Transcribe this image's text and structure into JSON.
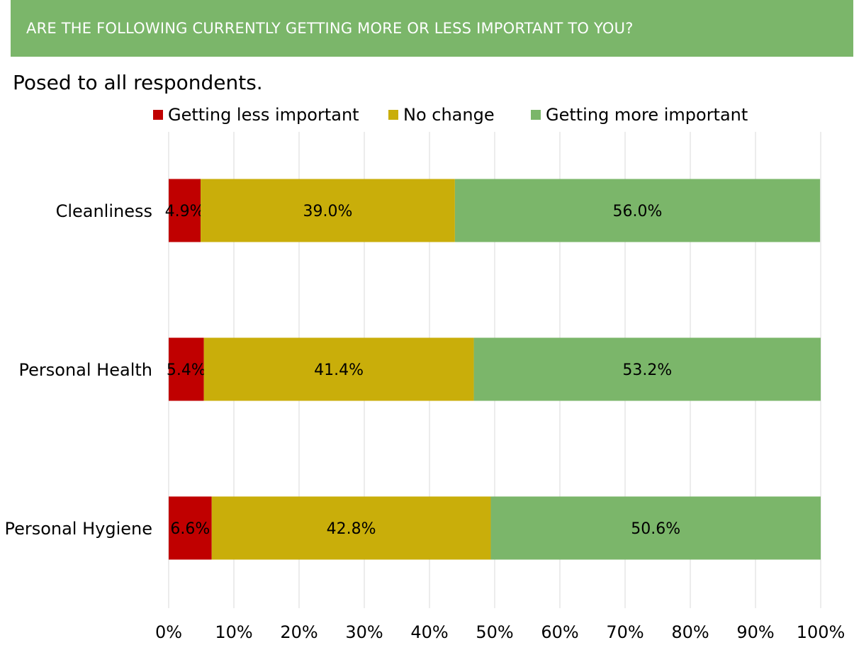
{
  "header": {
    "title": "ARE THE FOLLOWING CURRENTLY GETTING MORE OR LESS IMPORTANT TO YOU?"
  },
  "subtitle": "Posed to all respondents.",
  "colors": {
    "header_bg": "#7bb66a",
    "less": "#c00000",
    "no_change": "#c9ae0a",
    "more": "#7bb66a",
    "grid": "#d9d9d9"
  },
  "chart_data": {
    "type": "bar",
    "orientation": "horizontal",
    "stacked": true,
    "categories": [
      "Cleanliness",
      "Personal Health",
      "Personal Hygiene"
    ],
    "series": [
      {
        "name": "Getting less important",
        "values": [
          4.9,
          5.4,
          6.6
        ],
        "labels": [
          "4.9%",
          "5.4%",
          "6.6%"
        ]
      },
      {
        "name": "No change",
        "values": [
          39.0,
          41.4,
          42.8
        ],
        "labels": [
          "39.0%",
          "41.4%",
          "42.8%"
        ]
      },
      {
        "name": "Getting more important",
        "values": [
          56.0,
          53.2,
          50.6
        ],
        "labels": [
          "56.0%",
          "53.2%",
          "50.6%"
        ]
      }
    ],
    "xlim": [
      0,
      100
    ],
    "xticks": [
      "0%",
      "10%",
      "20%",
      "30%",
      "40%",
      "50%",
      "60%",
      "70%",
      "80%",
      "90%",
      "100%"
    ],
    "grid": true,
    "legend_position": "top"
  }
}
